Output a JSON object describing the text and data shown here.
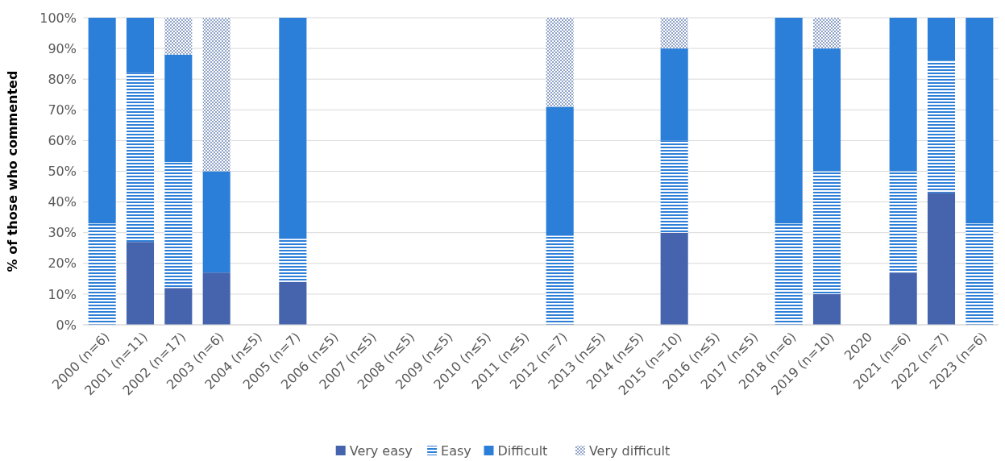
{
  "chart_data": {
    "type": "bar",
    "stacked": true,
    "ylabel": "% of those who commented",
    "categories": [
      "2000 (n=6)",
      "2001 (n=11)",
      "2002 (n=17)",
      "2003 (n=6)",
      "2004 (n≤5)",
      "2005 (n=7)",
      "2006 (n≤5)",
      "2007 (n≤5)",
      "2008 (n≤5)",
      "2009 (n≤5)",
      "2010 (n≤5)",
      "2011 (n≤5)",
      "2012 (n=7)",
      "2013 (n≤5)",
      "2014 (n≤5)",
      "2015 (n=10)",
      "2016 (n≤5)",
      "2017 (n≤5)",
      "2018 (n=6)",
      "2019 (n=10)",
      "2020",
      "2021 (n=6)",
      "2022 (n=7)",
      "2023 (n=6)"
    ],
    "series": [
      {
        "name": "Very easy",
        "color": "#4664ad",
        "values": [
          0,
          27,
          12,
          17,
          null,
          14,
          null,
          null,
          null,
          null,
          null,
          null,
          0,
          null,
          null,
          30,
          null,
          null,
          0,
          10,
          null,
          17,
          43,
          0
        ]
      },
      {
        "name": "Easy",
        "color": "#2e7fd8",
        "values": [
          33,
          55,
          41,
          0,
          null,
          14,
          null,
          null,
          null,
          null,
          null,
          null,
          29,
          null,
          null,
          30,
          null,
          null,
          33,
          40,
          null,
          33,
          43,
          33
        ]
      },
      {
        "name": "Difficult",
        "color": "#2b7fd8",
        "values": [
          67,
          18,
          35,
          33,
          null,
          72,
          null,
          null,
          null,
          null,
          null,
          null,
          42,
          null,
          null,
          30,
          null,
          null,
          67,
          40,
          null,
          50,
          14,
          67
        ]
      },
      {
        "name": "Very difficult",
        "color": "#8fa3c8",
        "values": [
          0,
          0,
          12,
          50,
          null,
          0,
          null,
          null,
          null,
          null,
          null,
          null,
          29,
          null,
          null,
          10,
          null,
          null,
          0,
          10,
          null,
          0,
          0,
          0
        ]
      }
    ],
    "ylim": [
      0,
      100
    ],
    "yticks": [
      {
        "value": 0,
        "label": "0%"
      },
      {
        "value": 10,
        "label": "10%"
      },
      {
        "value": 20,
        "label": "20%"
      },
      {
        "value": 30,
        "label": "30%"
      },
      {
        "value": 40,
        "label": "40%"
      },
      {
        "value": 50,
        "label": "50%"
      },
      {
        "value": 60,
        "label": "60%"
      },
      {
        "value": 70,
        "label": "70%"
      },
      {
        "value": 80,
        "label": "80%"
      },
      {
        "value": 90,
        "label": "90%"
      },
      {
        "value": 100,
        "label": "100%"
      }
    ],
    "grid": "y",
    "legend": "bottom"
  }
}
